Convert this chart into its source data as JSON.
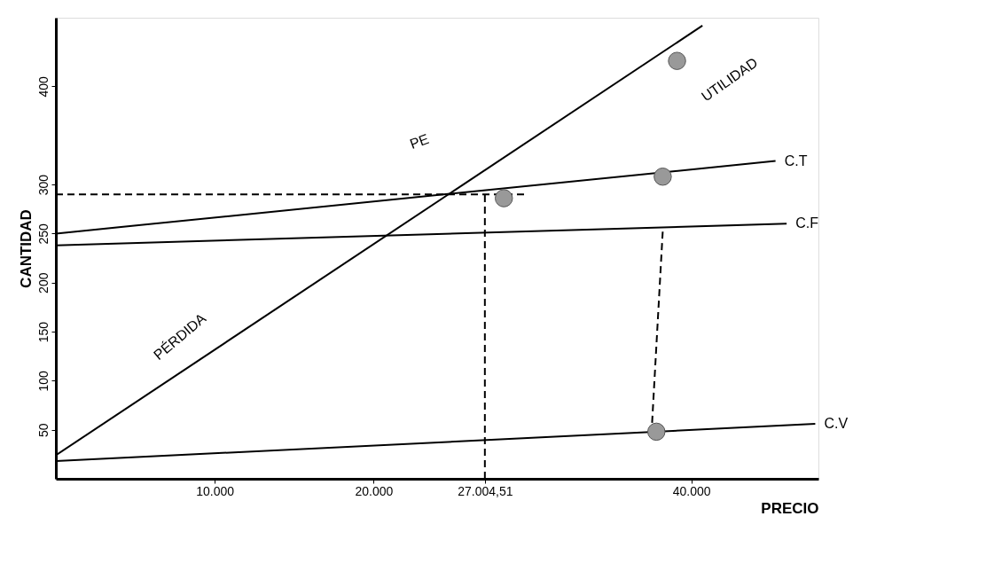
{
  "chart_data": {
    "type": "line",
    "xlabel": "PRECIO",
    "ylabel": "CANTIDAD",
    "xlim": [
      0,
      48000
    ],
    "ylim": [
      0,
      470
    ],
    "xticks": [
      {
        "value": 10000,
        "label": "10.000"
      },
      {
        "value": 20000,
        "label": "20.000"
      },
      {
        "value": 27004.51,
        "label": "27.004,51"
      },
      {
        "value": 40000,
        "label": "40.000"
      }
    ],
    "yticks": [
      50,
      100,
      150,
      200,
      250,
      300,
      400
    ],
    "grid": false,
    "legend": false,
    "series": [
      {
        "color": "#000000",
        "x": [
          0,
          40700
        ],
        "values": [
          24,
          462
        ]
      },
      {
        "name": "C.T",
        "color": "#000000",
        "x": [
          0,
          45300
        ],
        "values": [
          250,
          324
        ]
      },
      {
        "name": "C.F",
        "color": "#000000",
        "x": [
          0,
          46000
        ],
        "values": [
          238,
          260
        ]
      },
      {
        "name": "C.V",
        "color": "#000000",
        "x": [
          0,
          47800
        ],
        "values": [
          18,
          56
        ]
      },
      {
        "color": "#000000",
        "line_style": "dashed",
        "x": [
          0,
          29600
        ],
        "values": [
          290,
          290
        ]
      },
      {
        "color": "#000000",
        "line_style": "dashed",
        "x": [
          27004.51,
          27004.51
        ],
        "values": [
          0,
          290
        ]
      },
      {
        "color": "#000000",
        "line_style": "dashed",
        "x": [
          38200,
          37500
        ],
        "values": [
          252,
          48
        ]
      },
      {
        "type": "scatter",
        "color": "#999999",
        "marker": "circle",
        "x": [
          39100,
          38200,
          28200,
          37800
        ],
        "values": [
          426,
          308,
          286,
          48
        ]
      }
    ],
    "annotations": [
      "UTILIDAD",
      "PE",
      "PÉRDIDA"
    ]
  }
}
